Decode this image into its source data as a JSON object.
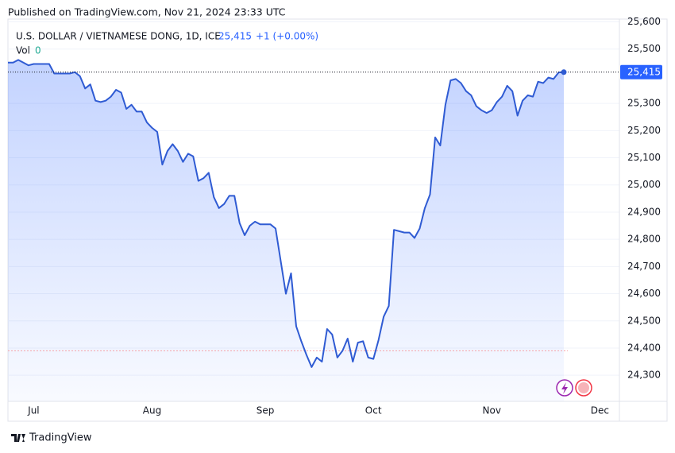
{
  "published": "Published on TradingView.com, Nov 21, 2024 23:33 UTC",
  "brand": "TradingView",
  "chart_data": {
    "type": "area",
    "legend": {
      "symbol": "U.S. DOLLAR / VIETNAMESE DONG, 1D, ICE",
      "price": "25,415",
      "change": "+1 (+0.00%)",
      "vol_label": "Vol",
      "vol": "0"
    },
    "categories": [
      null,
      null,
      null,
      null,
      null,
      "Jul",
      null,
      null,
      null,
      null,
      null,
      null,
      null,
      null,
      null,
      null,
      null,
      null,
      null,
      null,
      null,
      null,
      null,
      null,
      null,
      null,
      null,
      null,
      "Aug",
      null,
      null,
      null,
      null,
      null,
      null,
      null,
      null,
      null,
      null,
      null,
      null,
      null,
      null,
      null,
      null,
      null,
      null,
      null,
      null,
      null,
      "Sep",
      null,
      null,
      null,
      null,
      null,
      null,
      null,
      null,
      null,
      null,
      null,
      null,
      null,
      null,
      null,
      null,
      null,
      null,
      null,
      null,
      "Oct",
      null,
      null,
      null,
      null,
      null,
      null,
      null,
      null,
      null,
      null,
      null,
      null,
      null,
      null,
      null,
      null,
      null,
      null,
      null,
      null,
      null,
      null,
      "Nov",
      null,
      null,
      null,
      null,
      null,
      null,
      null,
      null,
      null,
      null,
      null,
      null,
      null,
      null,
      null,
      null,
      null,
      null,
      null,
      null,
      "Dec"
    ],
    "series": [
      {
        "name": "U.S. DOLLAR / VIETNAMESE DONG",
        "color": "#2f5bd3",
        "values": [
          25450,
          25450,
          25460,
          25450,
          25440,
          25445,
          25445,
          25445,
          25445,
          25410,
          25410,
          25410,
          25410,
          25415,
          25400,
          25355,
          25370,
          25310,
          25305,
          25310,
          25325,
          25350,
          25340,
          25280,
          25295,
          25270,
          25270,
          25230,
          25210,
          25195,
          25075,
          25125,
          25150,
          25125,
          25085,
          25115,
          25105,
          25015,
          25025,
          25045,
          24955,
          24915,
          24930,
          24960,
          24960,
          24860,
          24815,
          24850,
          24865,
          24855,
          24855,
          24855,
          24840,
          24720,
          24600,
          24675,
          24480,
          24425,
          24375,
          24330,
          24365,
          24350,
          24470,
          24450,
          24365,
          24390,
          24435,
          24350,
          24420,
          24425,
          24365,
          24360,
          24430,
          24515,
          24555,
          24835,
          24830,
          24825,
          24825,
          24805,
          24840,
          24915,
          24965,
          25175,
          25145,
          25295,
          25385,
          25390,
          25375,
          25345,
          25330,
          25290,
          25275,
          25265,
          25275,
          25305,
          25325,
          25365,
          25345,
          25255,
          25310,
          25330,
          25325,
          25380,
          25375,
          25395,
          25390,
          25414,
          25415,
          null,
          null,
          null,
          null,
          null,
          null,
          null
        ]
      }
    ],
    "reference_value": 24390,
    "ylim": [
      24204,
      25622
    ],
    "yticks": [
      {
        "value": 25600,
        "label": "25,600"
      },
      {
        "value": 25500,
        "label": "25,500"
      },
      {
        "value": 25300,
        "label": "25,300"
      },
      {
        "value": 25200,
        "label": "25,200"
      },
      {
        "value": 25100,
        "label": "25,100"
      },
      {
        "value": 25000,
        "label": "25,000"
      },
      {
        "value": 24900,
        "label": "24,900"
      },
      {
        "value": 24800,
        "label": "24,800"
      },
      {
        "value": 24700,
        "label": "24,700"
      },
      {
        "value": 24600,
        "label": "24,600"
      },
      {
        "value": 24500,
        "label": "24,500"
      },
      {
        "value": 24400,
        "label": "24,400"
      },
      {
        "value": 24300,
        "label": "24,300"
      }
    ],
    "grid": true
  }
}
